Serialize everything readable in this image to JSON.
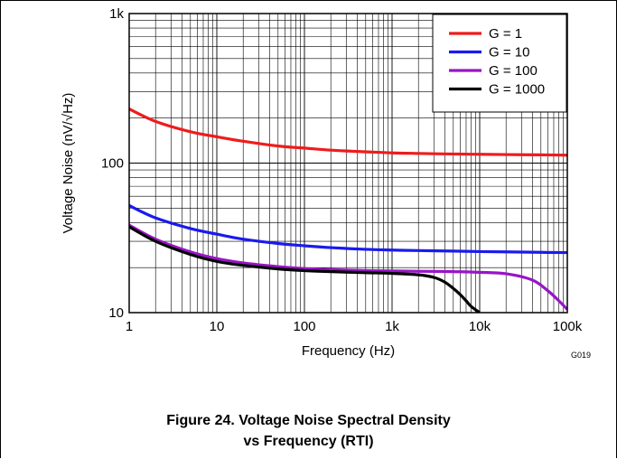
{
  "chart_data": {
    "type": "line",
    "xscale": "log",
    "yscale": "log",
    "xlim": [
      1,
      100000
    ],
    "ylim": [
      10,
      1000
    ],
    "xlabel": "Frequency (Hz)",
    "ylabel": "Voltage Noise (nV/√Hz)",
    "x_ticks": [
      "1",
      "10",
      "100",
      "1k",
      "10k",
      "100k"
    ],
    "y_ticks": [
      "10",
      "100",
      "1k"
    ],
    "grid": true,
    "legend_position": "top-right",
    "figure_code": "G019",
    "series": [
      {
        "name": "G = 1",
        "color": "#ee1c1c",
        "x": [
          1,
          2,
          5,
          10,
          20,
          50,
          100,
          200,
          500,
          1000,
          2000,
          5000,
          10000,
          20000,
          50000,
          100000
        ],
        "y": [
          230,
          190,
          162,
          150,
          140,
          130,
          126,
          122,
          119,
          117,
          116,
          115,
          114.5,
          114,
          113.5,
          113
        ]
      },
      {
        "name": "G = 10",
        "color": "#1a1aee",
        "x": [
          1,
          2,
          5,
          10,
          20,
          50,
          100,
          200,
          500,
          1000,
          2000,
          5000,
          10000,
          20000,
          50000,
          100000
        ],
        "y": [
          52,
          43,
          36.5,
          33.5,
          31,
          29,
          28,
          27.2,
          26.5,
          26.2,
          26,
          25.8,
          25.6,
          25.5,
          25.3,
          25.2
        ]
      },
      {
        "name": "G = 100",
        "color": "#9a14c8",
        "x": [
          1,
          2,
          5,
          10,
          20,
          50,
          100,
          200,
          500,
          1000,
          2000,
          5000,
          10000,
          20000,
          40000,
          60000,
          80000,
          100000
        ],
        "y": [
          38.5,
          31,
          25.5,
          23,
          21.5,
          20.3,
          19.7,
          19.4,
          19.1,
          19,
          18.9,
          18.8,
          18.6,
          18.2,
          16.5,
          14,
          12,
          10.5
        ]
      },
      {
        "name": "G = 1000",
        "color": "#000000",
        "x": [
          1,
          2,
          5,
          10,
          20,
          50,
          100,
          200,
          500,
          1000,
          2000,
          3000,
          4000,
          5000,
          6000,
          7000,
          8000,
          10000
        ],
        "y": [
          37.5,
          30,
          24.5,
          22,
          20.7,
          19.6,
          19.1,
          18.8,
          18.5,
          18.3,
          17.9,
          17.2,
          16,
          14.5,
          13.2,
          12,
          11,
          10
        ]
      }
    ]
  },
  "caption": {
    "line1": "Figure 24. Voltage Noise Spectral Density",
    "line2": "vs Frequency (RTI)"
  }
}
